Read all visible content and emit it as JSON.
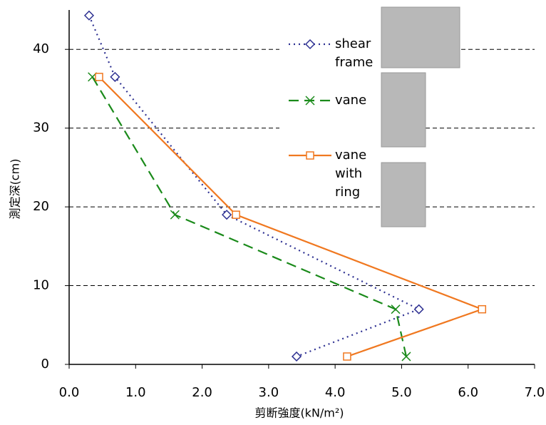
{
  "chart_data": {
    "type": "line",
    "x_label": "剪断強度(kN/m²)",
    "y_label": "測定深(cm)",
    "xlim": [
      0,
      7
    ],
    "ylim": [
      0,
      45
    ],
    "xticks": [
      {
        "value": 0,
        "label": "0.0"
      },
      {
        "value": 1,
        "label": "1.0"
      },
      {
        "value": 2,
        "label": "2.0"
      },
      {
        "value": 3,
        "label": "3.0"
      },
      {
        "value": 4,
        "label": "4.0"
      },
      {
        "value": 5,
        "label": "5.0"
      },
      {
        "value": 6,
        "label": "6.0"
      },
      {
        "value": 7,
        "label": "7.0"
      }
    ],
    "yticks": [
      0,
      10,
      20,
      30,
      40
    ],
    "grid": true,
    "series": [
      {
        "name": "shear frame",
        "color": "#2e3192",
        "marker": "diamond",
        "dash": "dotted",
        "x": [
          0.3,
          0.69,
          2.37,
          5.26,
          3.42
        ],
        "values": [
          44.3,
          36.5,
          19,
          7,
          1
        ]
      },
      {
        "name": "vane",
        "color": "#1a8a1a",
        "marker": "x",
        "dash": "dashed",
        "x": [
          0.35,
          1.59,
          4.91,
          5.07
        ],
        "values": [
          36.5,
          19,
          7,
          1
        ]
      },
      {
        "name": "vane with ring",
        "color": "#f07820",
        "marker": "square",
        "dash": "solid",
        "x": [
          0.45,
          2.51,
          6.21,
          4.18
        ],
        "values": [
          36.5,
          19,
          7,
          1
        ]
      }
    ]
  }
}
